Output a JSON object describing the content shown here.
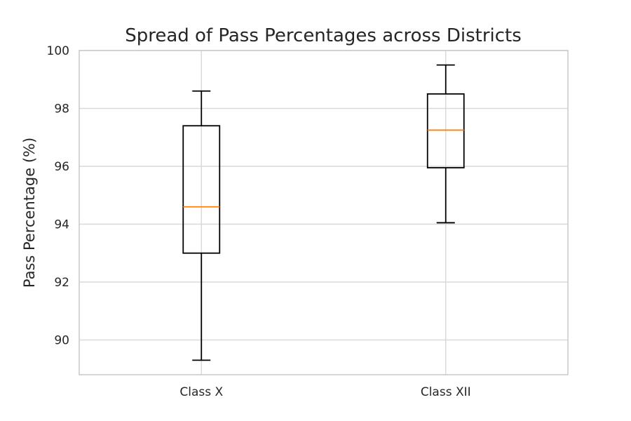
{
  "chart_data": {
    "type": "box",
    "title": "Spread of Pass Percentages across Districts",
    "xlabel": "",
    "ylabel": "Pass Percentage (%)",
    "ylim": [
      88.8,
      100
    ],
    "yticks": [
      90,
      92,
      94,
      96,
      98,
      100
    ],
    "grid": true,
    "categories": [
      "Class X",
      "Class XII"
    ],
    "boxes": [
      {
        "category": "Class X",
        "whisker_low": 89.3,
        "q1": 93.0,
        "median": 94.6,
        "q3": 97.4,
        "whisker_high": 98.6
      },
      {
        "category": "Class XII",
        "whisker_low": 94.05,
        "q1": 95.95,
        "median": 97.25,
        "q3": 98.5,
        "whisker_high": 99.5
      }
    ],
    "colors": {
      "box": "#000000",
      "median": "#ff7f0e",
      "grid": "#d9d9d9",
      "frame": "#cccccc"
    }
  }
}
